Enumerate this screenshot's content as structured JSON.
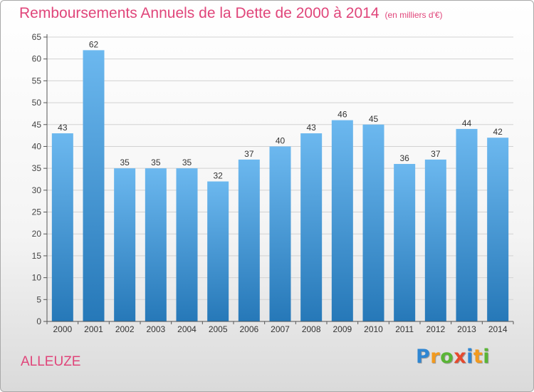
{
  "chart_data": {
    "type": "bar",
    "title": "Remboursements Annuels de la Dette de 2000 à 2014",
    "unit_note": "(en milliers d'€)",
    "categories": [
      "2000",
      "2001",
      "2002",
      "2003",
      "2004",
      "2005",
      "2006",
      "2007",
      "2008",
      "2009",
      "2010",
      "2011",
      "2012",
      "2013",
      "2014"
    ],
    "values": [
      43,
      62,
      35,
      35,
      35,
      32,
      37,
      40,
      43,
      46,
      45,
      36,
      37,
      44,
      42
    ],
    "ylim": [
      0,
      65
    ],
    "yticks": [
      0,
      5,
      10,
      15,
      20,
      25,
      30,
      35,
      40,
      45,
      50,
      55,
      60,
      65
    ],
    "xlabel": "",
    "ylabel": "",
    "grid": true,
    "legend": "none"
  },
  "location": "ALLEUZE",
  "brand": {
    "letters": [
      "P",
      "r",
      "o",
      "x",
      "i",
      "t",
      "i"
    ],
    "colors": [
      "#2f86d2",
      "#f29a1f",
      "#5ab536",
      "#e64a2e",
      "#2f86d2",
      "#f29a1f",
      "#5ab536"
    ]
  },
  "colors": {
    "bar_top": "#6cb8ef",
    "bar_bottom": "#2678b8",
    "title": "#e0457a"
  }
}
